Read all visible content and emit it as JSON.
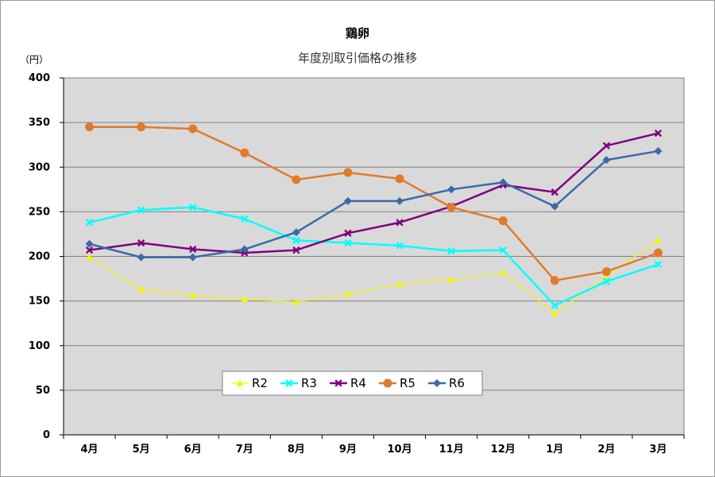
{
  "chart_data": {
    "type": "line",
    "title": "鶏卵",
    "subtitle": "年度別取引価格の推移",
    "ylabel": "（円）",
    "ylim": [
      0,
      400
    ],
    "yticks": [
      0,
      50,
      100,
      150,
      200,
      250,
      300,
      350,
      400
    ],
    "grid": true,
    "legend_position": "bottom-center-inside",
    "plot_background": "#d9d9d9",
    "categories": [
      "4月",
      "5月",
      "6月",
      "7月",
      "8月",
      "9月",
      "10月",
      "11月",
      "12月",
      "1月",
      "2月",
      "3月"
    ],
    "series": [
      {
        "name": "R2",
        "color": "#f5f500",
        "marker": "triangle",
        "width": 1.2,
        "values": [
          199,
          163,
          156,
          152,
          149,
          158,
          169,
          174,
          182,
          136,
          178,
          218
        ]
      },
      {
        "name": "R3",
        "color": "#00ffff",
        "marker": "x",
        "width": 2.5,
        "values": [
          238,
          252,
          255,
          242,
          218,
          215,
          212,
          206,
          207,
          145,
          172,
          191
        ]
      },
      {
        "name": "R4",
        "color": "#800080",
        "marker": "x",
        "width": 2.5,
        "values": [
          207,
          215,
          208,
          204,
          207,
          226,
          238,
          256,
          280,
          272,
          324,
          338
        ]
      },
      {
        "name": "R5",
        "color": "#e07b2c",
        "marker": "circle",
        "width": 2.5,
        "values": [
          345,
          345,
          343,
          316,
          286,
          294,
          287,
          255,
          240,
          173,
          183,
          204
        ]
      },
      {
        "name": "R6",
        "color": "#3a6aa8",
        "marker": "diamond",
        "width": 2.5,
        "values": [
          214,
          199,
          199,
          208,
          227,
          262,
          262,
          275,
          283,
          256,
          308,
          318
        ]
      }
    ]
  }
}
